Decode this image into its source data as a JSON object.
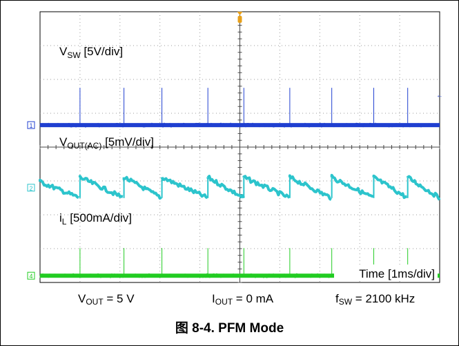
{
  "chart_data": {
    "type": "line",
    "grid": true,
    "x_axis": {
      "divisions": 10,
      "label": "Time [1ms/div]",
      "unit": "ms",
      "range": [
        0,
        10
      ]
    },
    "y_divisions": 8,
    "colors": {
      "switch_node": "#1f3fd0",
      "output": "#2cc4cc",
      "inductor": "#22cc22",
      "trigger": "#e8a019"
    },
    "switching_events_x_div": [
      1.0,
      2.1,
      3.05,
      4.2,
      5.1,
      6.25,
      7.3,
      8.35,
      9.2
    ],
    "channels": [
      {
        "id": "1",
        "label_main": "V",
        "label_sub": "SW",
        "label_tail": " [5V/div]",
        "scale": "5V/div",
        "baseline_div": 4.65,
        "waveform": "pulse"
      },
      {
        "id": "2",
        "label_main": "V",
        "label_sub": "OUT(AC)",
        "label_tail": " [5mV/div]",
        "scale": "5mV/div",
        "baseline_div": 2.8,
        "waveform": "sawtooth"
      },
      {
        "id": "4",
        "label_main": "i",
        "label_sub": "L",
        "label_tail": " [500mA/div]",
        "scale": "500mA/div",
        "baseline_div": 0.2,
        "waveform": "pulse"
      }
    ]
  },
  "conditions": [
    {
      "main": "V",
      "sub": "OUT",
      "tail": " = 5 V"
    },
    {
      "main": "I",
      "sub": "OUT",
      "tail": " = 0 mA"
    },
    {
      "main": "f",
      "sub": "SW",
      "tail": " = 2100 kHz"
    }
  ],
  "caption": "图 8-4. PFM Mode"
}
